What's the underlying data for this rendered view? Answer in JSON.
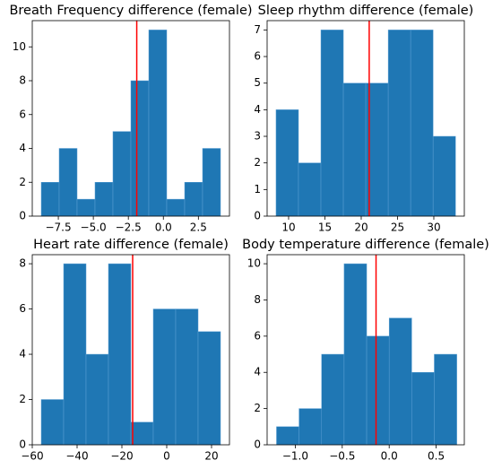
{
  "chart_data": [
    {
      "type": "histogram",
      "title": "Breath Frequency difference (female)",
      "color": "#1f77b4",
      "bins": [
        -8.72,
        -7.44,
        -6.16,
        -4.88,
        -3.6,
        -2.32,
        -1.04,
        0.24,
        1.52,
        2.8,
        4.08
      ],
      "counts": [
        2,
        4,
        1,
        2,
        5,
        8,
        11,
        1,
        2,
        4
      ],
      "vline": -1.9,
      "vline_color": "#ff0000",
      "xlim": [
        -9.36,
        4.72
      ],
      "xticks": [
        {
          "value": -7.5,
          "label": "−7.5"
        },
        {
          "value": -5,
          "label": "−5.0"
        },
        {
          "value": -2.5,
          "label": "−2.5"
        },
        {
          "value": 0,
          "label": "0.0"
        },
        2.5
      ],
      "ylim": [
        0,
        11.55
      ],
      "yticks": [
        0,
        2,
        4,
        6,
        8,
        10
      ]
    },
    {
      "type": "histogram",
      "title": "Sleep rhythm difference (female)",
      "color": "#1f77b4",
      "bins": [
        8.27,
        11.36,
        14.45,
        17.54,
        20.63,
        23.72,
        26.81,
        29.9,
        32.99
      ],
      "counts": [
        4,
        2,
        7,
        5,
        5,
        7,
        7,
        3
      ],
      "vline": 21.1,
      "vline_color": "#ff0000",
      "xlim": [
        7.04,
        34.2
      ],
      "xticks": [
        10,
        15,
        20,
        25,
        30
      ],
      "ylim": [
        0,
        7.35
      ],
      "yticks": [
        0,
        1,
        2,
        3,
        4,
        5,
        6,
        7
      ]
    },
    {
      "type": "histogram",
      "title": "Heart rate difference (female)",
      "color": "#1f77b4",
      "bins": [
        -56,
        -46,
        -36,
        -26,
        -16,
        -6,
        4,
        14,
        24
      ],
      "counts": [
        2,
        8,
        4,
        8,
        1,
        6,
        6,
        5
      ],
      "vline": -15.2,
      "vline_color": "#ff0000",
      "xlim": [
        -60,
        28
      ],
      "xticks": [
        {
          "value": -60,
          "label": "−60"
        },
        {
          "value": -40,
          "label": "−40"
        },
        {
          "value": -20,
          "label": "−20"
        },
        0,
        20
      ],
      "ylim": [
        0,
        8.4
      ],
      "yticks": [
        0,
        2,
        4,
        6,
        8
      ]
    },
    {
      "type": "histogram",
      "title": "Body temperature difference (female)",
      "color": "#1f77b4",
      "bins": [
        -1.2,
        -0.96,
        -0.72,
        -0.48,
        -0.24,
        0,
        0.24,
        0.48,
        0.72
      ],
      "counts": [
        1,
        2,
        5,
        10,
        6,
        7,
        4,
        5
      ],
      "vline": -0.14,
      "vline_color": "#ff0000",
      "xlim": [
        -1.3,
        0.8
      ],
      "xticks": [
        {
          "value": -1,
          "label": "−1.0"
        },
        {
          "value": -0.5,
          "label": "−0.5"
        },
        {
          "value": 0,
          "label": "0.0"
        },
        0.5
      ],
      "ylim": [
        0,
        10.5
      ],
      "yticks": [
        0,
        2,
        4,
        6,
        8,
        10
      ]
    }
  ]
}
